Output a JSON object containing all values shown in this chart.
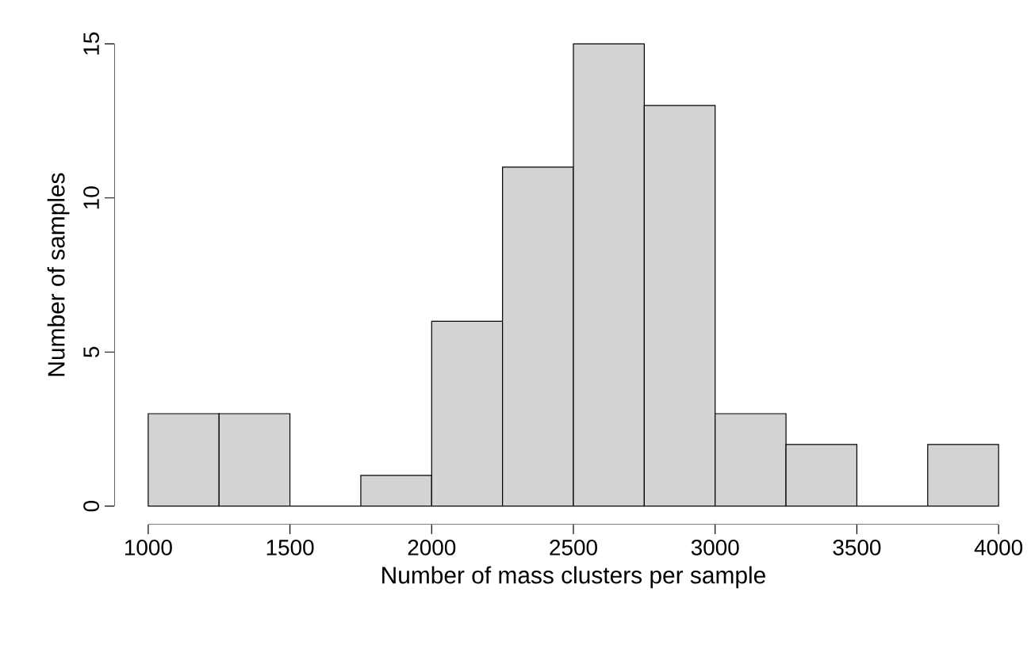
{
  "chart_data": {
    "type": "histogram",
    "xlabel": "Number of mass clusters per sample",
    "ylabel": "Number of samples",
    "bins": [
      1000,
      1250,
      1500,
      1750,
      2000,
      2250,
      2500,
      2750,
      3000,
      3250,
      3500,
      3750,
      4000
    ],
    "values": [
      3,
      3,
      0,
      1,
      6,
      11,
      15,
      13,
      3,
      2,
      0,
      2
    ],
    "color": "#d3d3d3",
    "xlim": [
      1000,
      4000
    ],
    "xticks": [
      1000,
      1500,
      2000,
      2500,
      3000,
      3500,
      4000
    ],
    "ylim": [
      0,
      15
    ],
    "yticks": [
      0,
      5,
      10,
      15
    ],
    "grid": false
  }
}
